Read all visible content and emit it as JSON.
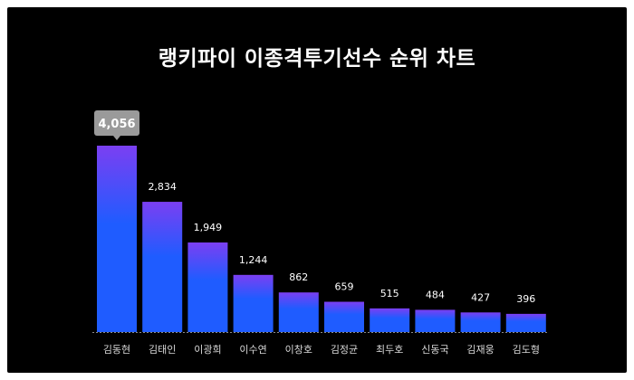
{
  "chart_data": {
    "type": "bar",
    "title": "랭키파이 이종격투기선수 순위 차트",
    "categories": [
      "김동현",
      "김태인",
      "이광희",
      "이수연",
      "이창호",
      "김정균",
      "최두호",
      "신동국",
      "김재웅",
      "김도형"
    ],
    "values": [
      4056,
      2834,
      1949,
      1244,
      862,
      659,
      515,
      484,
      427,
      396
    ],
    "value_labels": [
      "4,056",
      "2,834",
      "1,949",
      "1,244",
      "862",
      "659",
      "515",
      "484",
      "427",
      "396"
    ],
    "highlighted_index": 0,
    "ylim": [
      0,
      4056
    ],
    "grid": false,
    "legend": "none",
    "colors": {
      "background": "#000000",
      "bar_top": "#7b3ff2",
      "bar_bottom": "#1f5cff",
      "text": "#ffffff",
      "category_text": "#d9d9d9",
      "callout_bg": "#9a9a9a",
      "baseline": "#8a8a8a"
    }
  }
}
